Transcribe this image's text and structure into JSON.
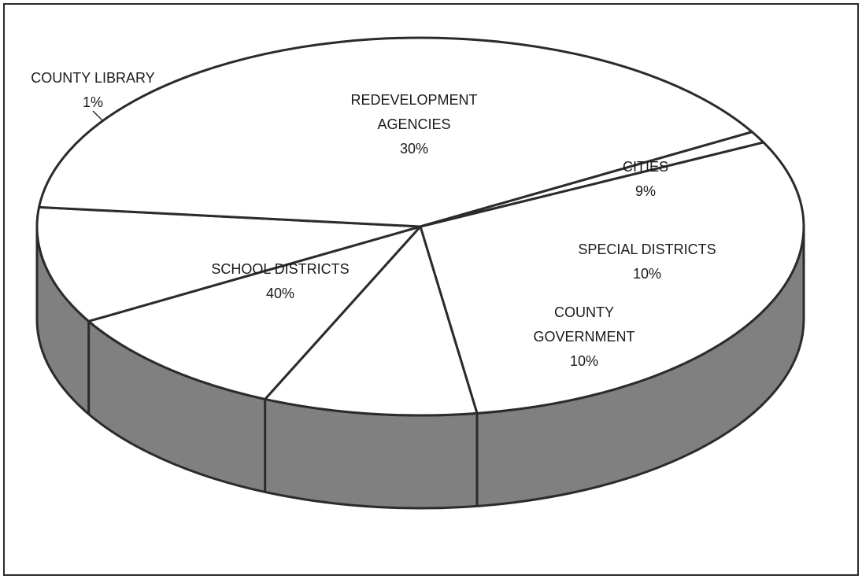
{
  "chart_data": {
    "type": "pie",
    "style": "3d",
    "title": "",
    "slices": [
      {
        "label_lines": [
          "REDEVELOPMENT",
          "AGENCIES"
        ],
        "percent_label": "30%",
        "value": 30
      },
      {
        "label_lines": [
          "CITIES"
        ],
        "percent_label": "9%",
        "value": 9
      },
      {
        "label_lines": [
          "SPECIAL DISTRICTS"
        ],
        "percent_label": "10%",
        "value": 10
      },
      {
        "label_lines": [
          "COUNTY",
          "GOVERNMENT"
        ],
        "percent_label": "10%",
        "value": 10
      },
      {
        "label_lines": [
          "SCHOOL DISTRICTS"
        ],
        "percent_label": "40%",
        "value": 40
      },
      {
        "label_lines": [
          "COUNTY LIBRARY"
        ],
        "percent_label": "1%",
        "value": 1
      }
    ],
    "colors": {
      "top": "#ffffff",
      "side": "#808080",
      "stroke": "#2b2b2b"
    }
  }
}
